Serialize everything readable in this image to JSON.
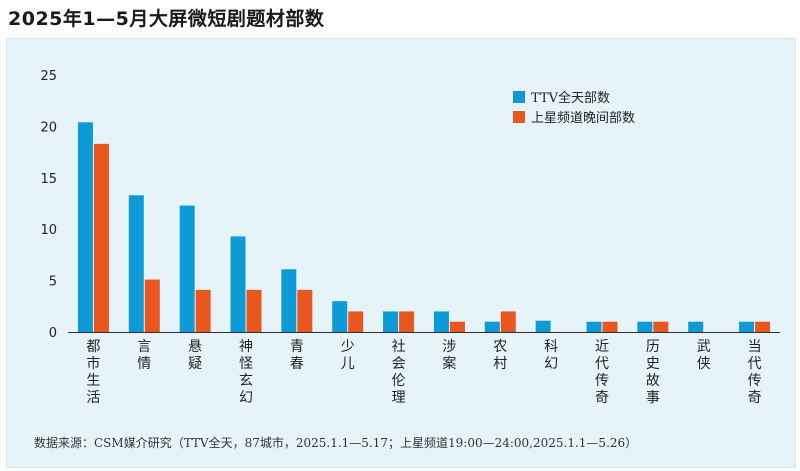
{
  "page": {
    "title": "2025年1—5月大屏微短剧题材部数",
    "source": "数据来源：CSM媒介研究（TTV全天，87城市，2025.1.1—5.17；上星频道19:00—24:00,2025.1.1—5.26）"
  },
  "colors": {
    "ttv": "#0d9ad6",
    "satellite": "#e8571f",
    "panel": "#e6f4f9",
    "axis": "#333333"
  },
  "chart_data": {
    "type": "bar",
    "title": "2025年1—5月大屏微短剧题材部数",
    "xlabel": "",
    "ylabel": "",
    "ylim": [
      0,
      25
    ],
    "yticks": [
      0,
      5,
      10,
      15,
      20,
      25
    ],
    "legend_position": "top-right",
    "categories": [
      "都市生活",
      "言情",
      "悬疑",
      "神怪玄幻",
      "青春",
      "少儿",
      "社会伦理",
      "涉案",
      "农村",
      "科幻",
      "近代传奇",
      "历史故事",
      "武侠",
      "当代传奇"
    ],
    "series": [
      {
        "name": "TTV全天部数",
        "color": "#0d9ad6",
        "values": [
          20.4,
          13.3,
          12.3,
          9.3,
          6.1,
          3.0,
          2.0,
          2.0,
          1.0,
          1.1,
          1.0,
          1.0,
          1.0,
          1.0
        ]
      },
      {
        "name": "上星频道晚间部数",
        "color": "#e8571f",
        "values": [
          18.3,
          5.1,
          4.1,
          4.1,
          4.1,
          2.0,
          2.0,
          1.0,
          2.0,
          null,
          1.0,
          1.0,
          null,
          1.0
        ]
      }
    ]
  }
}
